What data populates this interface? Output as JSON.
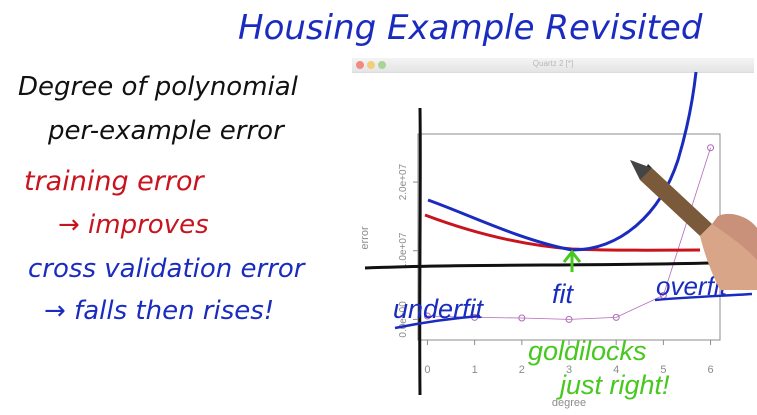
{
  "lecture": {
    "title": "Housing Example Revisited",
    "notes": [
      "Degree of polynomial",
      "per-example error",
      "training error",
      "→ improves",
      "cross validation error",
      "→ falls then rises!"
    ],
    "plot_annotations": {
      "underfit": "underfit",
      "fit": "fit",
      "overfit": "overfit",
      "goldilocks": "goldilocks",
      "just_right": "just right!"
    }
  },
  "window": {
    "title": "Quartz 2 [*]"
  },
  "colors": {
    "title": "#1a2bbf",
    "notes_black": "#111111",
    "training": "#c8141e",
    "crossval": "#1a2bbf",
    "green": "#46c81e",
    "axis_gray": "#8c8c8c"
  },
  "chart_data": {
    "type": "line",
    "xlabel": "degree",
    "ylabel": "error",
    "x_ticks": [
      "0",
      "1",
      "2",
      "3",
      "4",
      "5",
      "6"
    ],
    "y_ticks": [
      "0.0e+00",
      "1.0e+07",
      "2.0e+07"
    ],
    "xlim": [
      -0.2,
      6.2
    ],
    "ylim": [
      -0.3,
      2.7
    ],
    "plotted_points": {
      "x": [
        0,
        1,
        2,
        3,
        4,
        5,
        6
      ],
      "y": [
        0.05,
        0.03,
        0.02,
        0.0,
        0.03,
        0.35,
        2.5
      ]
    }
  }
}
